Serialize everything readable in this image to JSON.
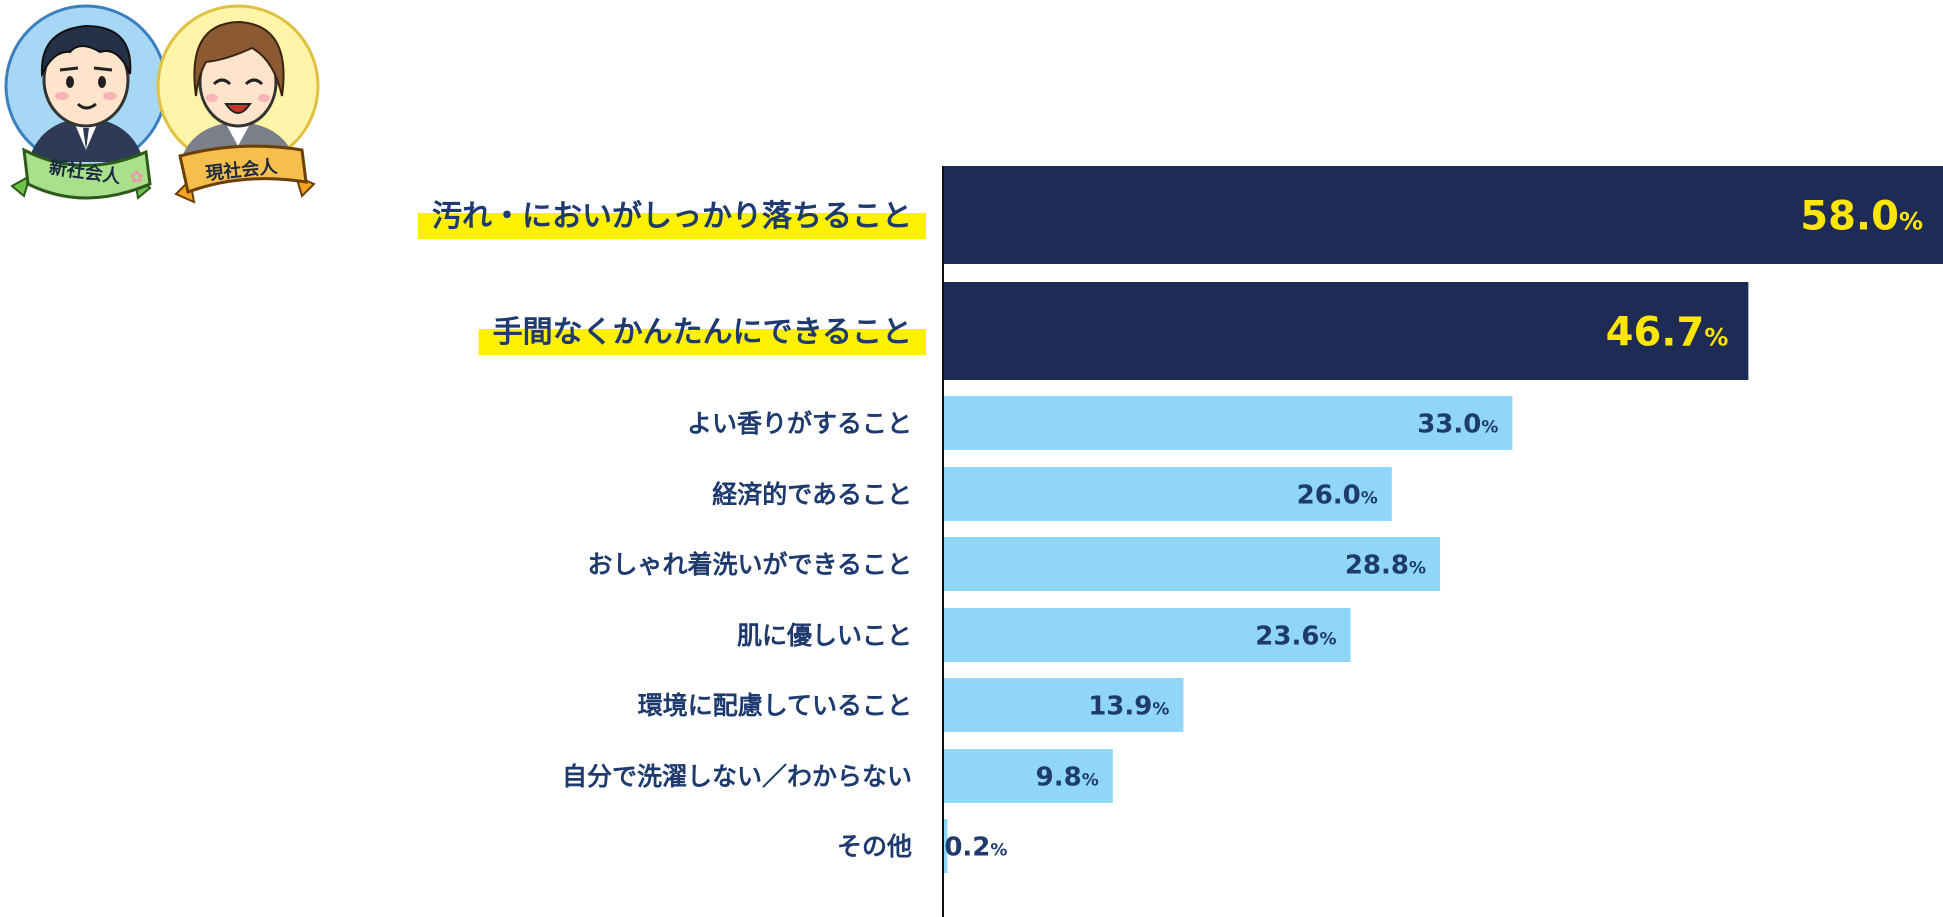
{
  "characters": {
    "new_employee_label": "新社会人",
    "current_employee_label": "現社会人"
  },
  "chart_data": {
    "type": "bar",
    "orientation": "horizontal",
    "unit": "%",
    "categories": [
      "汚れ・においがしっかり落ちること",
      "手間なくかんたんにできること",
      "よい香りがすること",
      "経済的であること",
      "おしゃれ着洗いができること",
      "肌に優しいこと",
      "環境に配慮していること",
      "自分で洗濯しない／わからない",
      "その他"
    ],
    "values": [
      58.0,
      46.7,
      33.0,
      26.0,
      28.8,
      23.6,
      13.9,
      9.8,
      0.2
    ],
    "value_labels": [
      "58.0",
      "46.7",
      "33.0",
      "26.0",
      "28.8",
      "23.6",
      "13.9",
      "9.8",
      "0.2"
    ],
    "highlighted_count": 2,
    "colors": {
      "highlight_bar": "#1e2c55",
      "normal_bar": "#8fd6f8",
      "highlight_value_text": "#ffe600",
      "normal_value_text": "#1e3a6e",
      "label_text": "#1e3a6e",
      "label_marker": "#fff100",
      "axis_line": "#111111"
    },
    "xlim": [
      0,
      58.0
    ],
    "grid": false,
    "legend": "none"
  }
}
